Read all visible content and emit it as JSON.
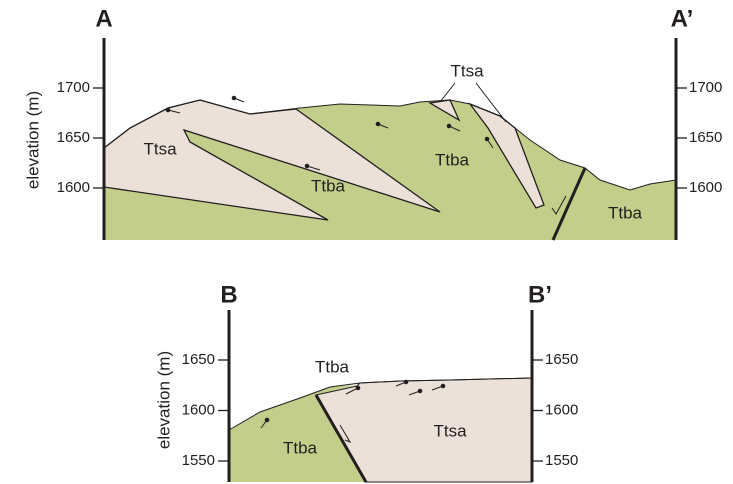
{
  "sections": [
    {
      "label_left": "A",
      "label_right": "A’",
      "axis_title": "elevation (m)",
      "ticks": [
        1700,
        1650,
        1600
      ],
      "units": [
        "Ttsa",
        "Ttba",
        "Ttba",
        "Ttsa",
        "Ttba"
      ]
    },
    {
      "label_left": "B",
      "label_right": "B’",
      "axis_title": "elevation (m)",
      "ticks": [
        1650,
        1600,
        1550
      ],
      "units": [
        "Ttba",
        "Ttba",
        "Ttsa"
      ]
    }
  ]
}
